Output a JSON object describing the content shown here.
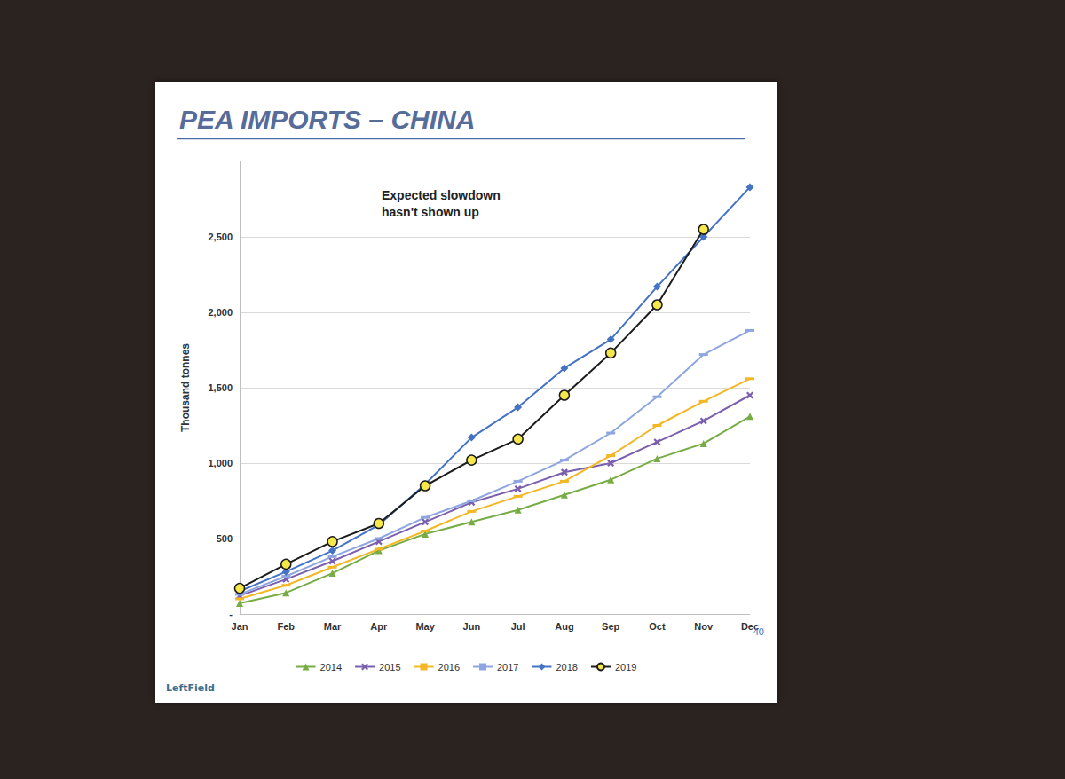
{
  "chart_data": {
    "type": "line",
    "title": "PEA IMPORTS – CHINA",
    "y_label": "Thousand tonnes",
    "annotation": "Expected slowdown\nhasn't shown up",
    "logo_text": "LeftField",
    "page_number": "40",
    "categories": [
      "Jan",
      "Feb",
      "Mar",
      "Apr",
      "May",
      "Jun",
      "Jul",
      "Aug",
      "Sep",
      "Oct",
      "Nov",
      "Dec"
    ],
    "series": [
      {
        "name": "2014",
        "color": "#77ac45",
        "marker": "triangle",
        "values": [
          70,
          140,
          270,
          420,
          530,
          610,
          690,
          790,
          890,
          1030,
          1130,
          1310
        ]
      },
      {
        "name": "2015",
        "color": "#7a5fae",
        "marker": "cross",
        "values": [
          120,
          230,
          350,
          480,
          610,
          740,
          830,
          940,
          1000,
          1140,
          1280,
          1450
        ]
      },
      {
        "name": "2016",
        "color": "#f4b724",
        "marker": "dash",
        "values": [
          100,
          190,
          310,
          430,
          550,
          680,
          780,
          880,
          1050,
          1250,
          1410,
          1560
        ]
      },
      {
        "name": "2017",
        "color": "#8ea6e0",
        "marker": "dash",
        "values": [
          130,
          250,
          380,
          500,
          640,
          750,
          880,
          1020,
          1200,
          1440,
          1720,
          1880
        ]
      },
      {
        "name": "2018",
        "color": "#4472c4",
        "marker": "diamond",
        "values": [
          150,
          280,
          420,
          590,
          860,
          1170,
          1370,
          1630,
          1820,
          2170,
          2500,
          2830
        ]
      },
      {
        "name": "2019",
        "color": "#1c1c1c",
        "marker": "circle",
        "values": [
          170,
          330,
          480,
          600,
          850,
          1020,
          1160,
          1450,
          1730,
          2050,
          2550,
          null
        ]
      }
    ],
    "ylim": [
      0,
      3000
    ],
    "yticks": [
      {
        "value": 0,
        "label": "-"
      },
      500,
      {
        "value": 1000,
        "label": "1,000"
      },
      {
        "value": 1500,
        "label": "1,500"
      },
      {
        "value": 2000,
        "label": "2,000"
      },
      {
        "value": 2500,
        "label": "2,500"
      }
    ],
    "grid": true,
    "legend": "bottom"
  }
}
